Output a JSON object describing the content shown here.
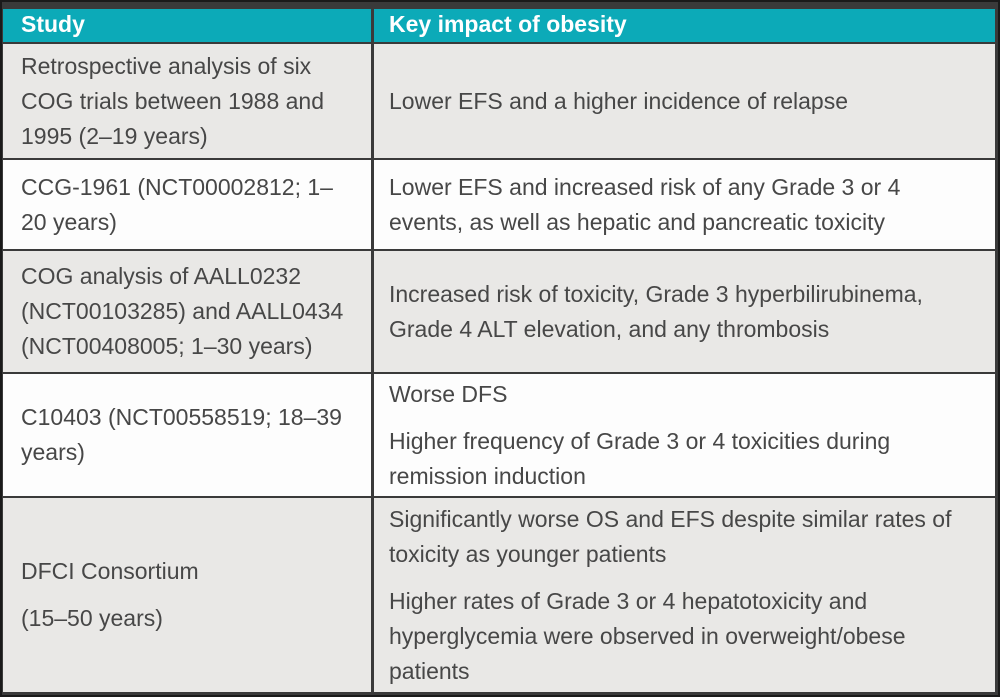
{
  "colors": {
    "teal": "#0caab8",
    "frame": "#3a3a3a",
    "row-gray": "#e9e8e6",
    "row-white": "#fdfdfd",
    "text": "#474747"
  },
  "table": {
    "columns": [
      {
        "label": "Study"
      },
      {
        "label": "Key impact of obesity"
      }
    ],
    "rows": [
      {
        "study": [
          "Retrospective analysis of six COG trials between 1988 and 1995 (2–19 years)"
        ],
        "impact": [
          "Lower EFS and a higher incidence of relapse"
        ]
      },
      {
        "study": [
          "CCG-1961 (NCT00002812; 1–20 years)"
        ],
        "impact": [
          "Lower EFS and increased risk of any Grade 3 or 4 events, as well as hepatic and pancreatic toxicity"
        ]
      },
      {
        "study": [
          "COG analysis of AALL0232 (NCT00103285) and AALL0434 (NCT00408005; 1–30 years)"
        ],
        "impact": [
          "Increased risk of toxicity, Grade 3 hyperbilirubinema, Grade 4 ALT elevation, and any thrombosis"
        ]
      },
      {
        "study": [
          "C10403 (NCT00558519; 18–39 years)"
        ],
        "impact": [
          "Worse DFS",
          "Higher frequency of Grade 3 or 4 toxicities during remission induction"
        ]
      },
      {
        "study": [
          "DFCI Consortium",
          "(15–50 years)"
        ],
        "impact": [
          "Significantly worse OS and EFS despite similar rates of toxicity as younger patients",
          "Higher rates of Grade 3 or 4 hepatotoxicity and hyperglycemia were observed in overweight/obese patients"
        ]
      }
    ]
  }
}
